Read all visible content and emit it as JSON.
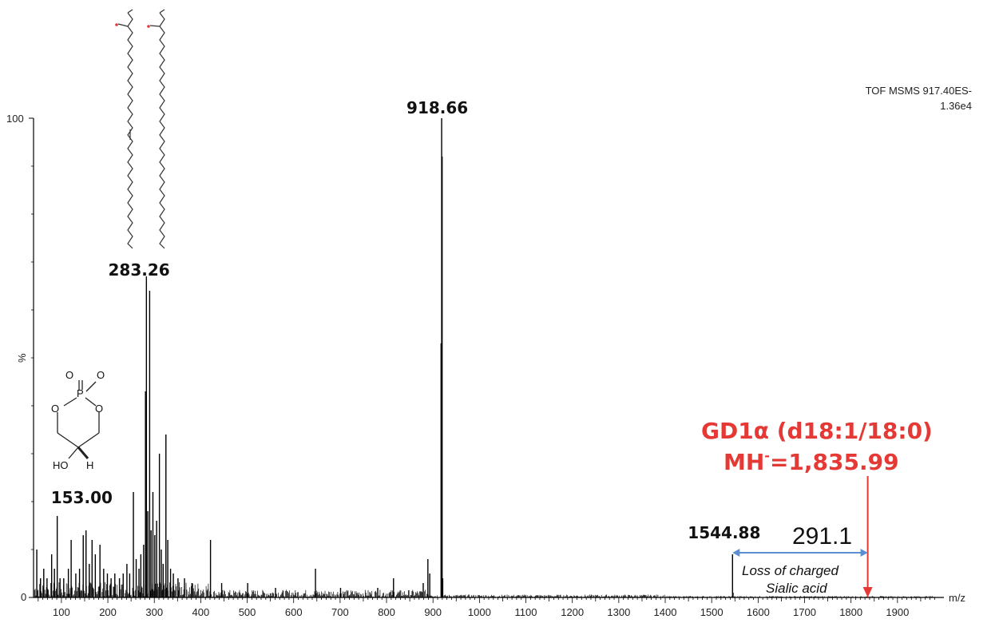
{
  "header": {
    "line1": "TOF MSMS 917.40ES-",
    "line2": "1.36e4"
  },
  "chart_data": {
    "type": "bar",
    "xlabel": "m/z",
    "ylabel": "%",
    "xlim": [
      40,
      2000
    ],
    "ylim": [
      0,
      100
    ],
    "xticks": [
      "100",
      "200",
      "300",
      "400",
      "500",
      "600",
      "700",
      "800",
      "900",
      "1000",
      "1100",
      "1200",
      "1300",
      "1400",
      "1500",
      "1600",
      "1700",
      "1800",
      "1900"
    ],
    "yticks": [
      "0",
      "100"
    ],
    "peaks": [
      {
        "x": 47,
        "y": 10
      },
      {
        "x": 55,
        "y": 4
      },
      {
        "x": 62,
        "y": 6
      },
      {
        "x": 69,
        "y": 4
      },
      {
        "x": 79,
        "y": 9
      },
      {
        "x": 85,
        "y": 6
      },
      {
        "x": 91,
        "y": 17
      },
      {
        "x": 97,
        "y": 4
      },
      {
        "x": 105,
        "y": 4
      },
      {
        "x": 115,
        "y": 6
      },
      {
        "x": 121,
        "y": 12
      },
      {
        "x": 131,
        "y": 5
      },
      {
        "x": 139,
        "y": 6
      },
      {
        "x": 147,
        "y": 13
      },
      {
        "x": 153,
        "y": 14
      },
      {
        "x": 160,
        "y": 7
      },
      {
        "x": 166,
        "y": 12
      },
      {
        "x": 173,
        "y": 9
      },
      {
        "x": 183,
        "y": 11
      },
      {
        "x": 191,
        "y": 6
      },
      {
        "x": 199,
        "y": 5
      },
      {
        "x": 207,
        "y": 4
      },
      {
        "x": 215,
        "y": 5
      },
      {
        "x": 225,
        "y": 4
      },
      {
        "x": 233,
        "y": 5
      },
      {
        "x": 241,
        "y": 7
      },
      {
        "x": 247,
        "y": 5
      },
      {
        "x": 255,
        "y": 22
      },
      {
        "x": 261,
        "y": 8
      },
      {
        "x": 267,
        "y": 6
      },
      {
        "x": 271,
        "y": 9
      },
      {
        "x": 277,
        "y": 11
      },
      {
        "x": 281,
        "y": 43
      },
      {
        "x": 283,
        "y": 67
      },
      {
        "x": 286,
        "y": 18
      },
      {
        "x": 290,
        "y": 64
      },
      {
        "x": 293,
        "y": 14
      },
      {
        "x": 297,
        "y": 22
      },
      {
        "x": 301,
        "y": 13
      },
      {
        "x": 305,
        "y": 16
      },
      {
        "x": 311,
        "y": 30
      },
      {
        "x": 315,
        "y": 10
      },
      {
        "x": 319,
        "y": 7
      },
      {
        "x": 325,
        "y": 34
      },
      {
        "x": 329,
        "y": 12
      },
      {
        "x": 335,
        "y": 6
      },
      {
        "x": 341,
        "y": 5
      },
      {
        "x": 351,
        "y": 4
      },
      {
        "x": 365,
        "y": 4
      },
      {
        "x": 381,
        "y": 3
      },
      {
        "x": 421,
        "y": 12
      },
      {
        "x": 445,
        "y": 3
      },
      {
        "x": 501,
        "y": 3
      },
      {
        "x": 561,
        "y": 2
      },
      {
        "x": 647,
        "y": 6
      },
      {
        "x": 701,
        "y": 2
      },
      {
        "x": 781,
        "y": 2
      },
      {
        "x": 815,
        "y": 4
      },
      {
        "x": 879,
        "y": 3
      },
      {
        "x": 889,
        "y": 8
      },
      {
        "x": 893,
        "y": 5
      },
      {
        "x": 917.4,
        "y": 53
      },
      {
        "x": 918.66,
        "y": 100
      },
      {
        "x": 919.7,
        "y": 92
      },
      {
        "x": 921,
        "y": 4
      },
      {
        "x": 1544.88,
        "y": 9
      },
      {
        "x": 1546,
        "y": 1
      },
      {
        "x": 1835.99,
        "y": 0.5
      }
    ],
    "peak_labels": [
      {
        "x": 153.0,
        "text": "153.00"
      },
      {
        "x": 283.26,
        "text": "283.26"
      },
      {
        "x": 918.66,
        "text": "918.66"
      },
      {
        "x": 1544.88,
        "text": "1544.88"
      }
    ]
  },
  "annotations": {
    "compound_name": "GD1α (d18:1/18:0)",
    "mh_prefix": "MH",
    "mh_superscript": "-",
    "mh_value": "=1,835.99",
    "mass_diff": "291.1",
    "loss_line1": "Loss of charged",
    "loss_line2": "Sialic acid",
    "structure_atoms": [
      "O",
      "O",
      "P",
      "O",
      "O",
      "HO",
      "H"
    ],
    "colors": {
      "red": "#e53935",
      "blue": "#5b8fcf"
    }
  }
}
